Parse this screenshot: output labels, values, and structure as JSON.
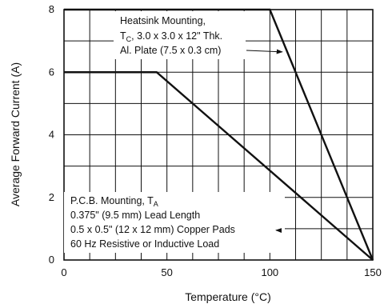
{
  "chart_data": {
    "type": "line",
    "xlabel": "Temperature (°C)",
    "ylabel": "Average Forward Current (A)",
    "xlim": [
      0,
      150
    ],
    "ylim": [
      0,
      8
    ],
    "x_ticks": [
      0,
      50,
      100,
      150
    ],
    "y_ticks": [
      0,
      2,
      4,
      6,
      8
    ],
    "grid": true,
    "series": [
      {
        "points": [
          [
            0,
            8
          ],
          [
            100,
            8
          ],
          [
            150,
            0
          ]
        ]
      },
      {
        "points": [
          [
            0,
            6
          ],
          [
            45,
            6
          ],
          [
            150,
            0
          ]
        ]
      }
    ],
    "annotations": [
      {
        "lines": [
          "Heatsink Mounting,",
          "T",
          ", 3.0 x 3.0 x 12\" Thk.",
          "Al. Plate (7.5 x 0.3 cm)"
        ],
        "subscript": "C",
        "arrow_to": [
          106,
          6.65
        ]
      },
      {
        "lines": [
          "P.C.B. Mounting, T",
          "0.375\" (9.5 mm) Lead Length",
          "0.5 x 0.5\" (12 x 12 mm) Copper Pads",
          "60 Hz Resistive or Inductive Load"
        ],
        "subscript": "A",
        "arrow_to": [
          103,
          0.95
        ]
      }
    ]
  }
}
